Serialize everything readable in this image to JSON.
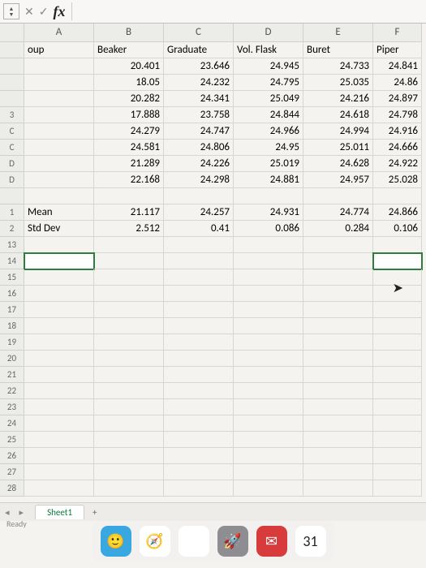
{
  "columns": [
    "A",
    "B",
    "C",
    "D",
    "E",
    "F"
  ],
  "headerRow": {
    "A": "oup",
    "B": "Beaker",
    "C": "Graduate",
    "D": "Vol. Flask",
    "E": "Buret",
    "F": "Piper"
  },
  "rows": [
    {
      "rh": "",
      "A": "",
      "B": "20.401",
      "C": "23.646",
      "D": "24.945",
      "E": "24.733",
      "F": "24.841"
    },
    {
      "rh": "",
      "A": "",
      "B": "18.05",
      "C": "24.232",
      "D": "24.795",
      "E": "25.035",
      "F": "24.86"
    },
    {
      "rh": "",
      "A": "",
      "B": "20.282",
      "C": "24.341",
      "D": "25.049",
      "E": "24.216",
      "F": "24.897"
    },
    {
      "rh": "3",
      "A": "",
      "B": "17.888",
      "C": "23.758",
      "D": "24.844",
      "E": "24.618",
      "F": "24.798"
    },
    {
      "rh": "C",
      "A": "",
      "B": "24.279",
      "C": "24.747",
      "D": "24.966",
      "E": "24.994",
      "F": "24.916"
    },
    {
      "rh": "C",
      "A": "",
      "B": "24.581",
      "C": "24.806",
      "D": "24.95",
      "E": "25.011",
      "F": "24.666"
    },
    {
      "rh": "D",
      "A": "",
      "B": "21.289",
      "C": "24.226",
      "D": "25.019",
      "E": "24.628",
      "F": "24.922"
    },
    {
      "rh": "D",
      "A": "",
      "B": "22.168",
      "C": "24.298",
      "D": "24.881",
      "E": "24.957",
      "F": "25.028"
    },
    {
      "rh": "",
      "A": "",
      "B": "",
      "C": "",
      "D": "",
      "E": "",
      "F": ""
    },
    {
      "rh": "1",
      "A": "Mean",
      "B": "21.117",
      "C": "24.257",
      "D": "24.931",
      "E": "24.774",
      "F": "24.866"
    },
    {
      "rh": "2",
      "A": "Std Dev",
      "B": "2.512",
      "C": "0.41",
      "D": "0.086",
      "E": "0.284",
      "F": "0.106"
    }
  ],
  "emptyRows": [
    "13",
    "14",
    "15",
    "16",
    "17",
    "18",
    "19",
    "20",
    "21",
    "22",
    "23",
    "24",
    "25",
    "26",
    "27",
    "28"
  ],
  "activeCell": {
    "row": "14",
    "col": "A"
  },
  "selCellF": {
    "row": "14",
    "col": "F"
  },
  "sheetTab": "Sheet1",
  "status": "Ready",
  "formula": "",
  "dock": {
    "finder": {
      "bg": "#39a8e0",
      "label": "🙂"
    },
    "safari": {
      "bg": "#ffffff",
      "label": "🧭"
    },
    "chrome": {
      "bg": "#ffffff",
      "label": "⊚"
    },
    "launchpad": {
      "bg": "#8e8e92",
      "label": "🚀"
    },
    "mail": {
      "bg": "#d83b3b",
      "label": "✉"
    },
    "calendar": {
      "bg": "#ffffff",
      "label": "31",
      "color": "#222"
    }
  }
}
